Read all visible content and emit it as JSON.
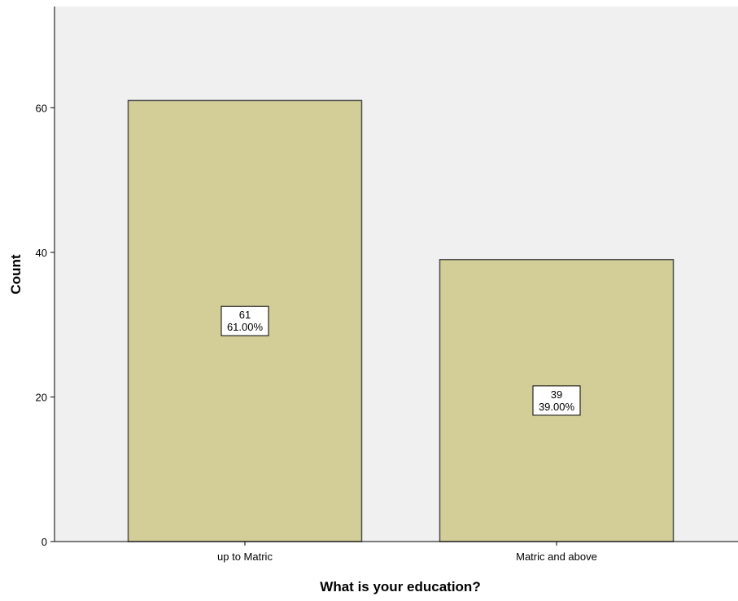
{
  "chart_data": {
    "type": "bar",
    "title": "",
    "xlabel": "What is your education?",
    "ylabel": "Count",
    "categories": [
      "up to Matric",
      "Matric and above"
    ],
    "values": [
      61,
      39
    ],
    "data_labels": [
      {
        "count": "61",
        "percent": "61.00%"
      },
      {
        "count": "39",
        "percent": "39.00%"
      }
    ],
    "ylim": [
      0,
      74
    ],
    "yticks": [
      0,
      20,
      40,
      60
    ],
    "grid": false,
    "legend": "none",
    "colors": {
      "plot_background": "#f0f0f0",
      "bar_fill": "#d3ce97",
      "bar_stroke": "#4d4d4d",
      "axis": "#000000",
      "label_box": "#ffffff"
    }
  }
}
